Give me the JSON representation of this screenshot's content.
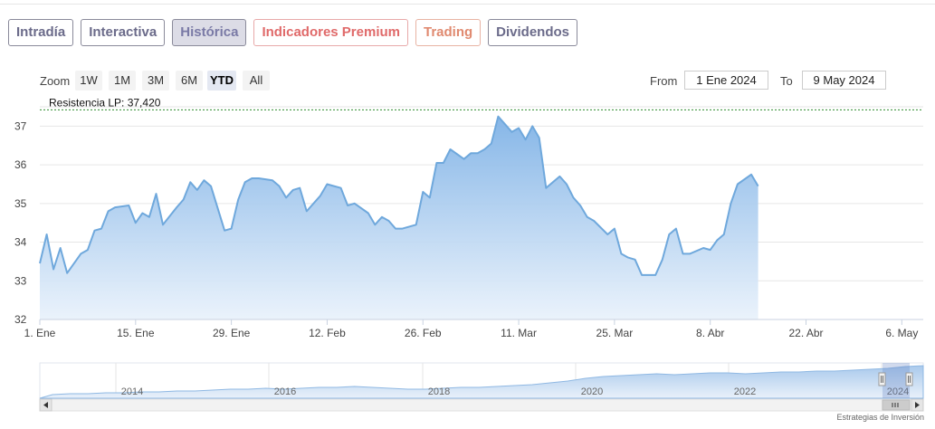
{
  "tabs": [
    {
      "label": "Intradía"
    },
    {
      "label": "Interactiva"
    },
    {
      "label": "Histórica"
    },
    {
      "label": "Indicadores Premium"
    },
    {
      "label": "Trading"
    },
    {
      "label": "Dividendos"
    }
  ],
  "active_tab": "Histórica",
  "zoom": {
    "label": "Zoom",
    "buttons": [
      "1W",
      "1M",
      "3M",
      "6M",
      "YTD",
      "All"
    ],
    "selected": "YTD"
  },
  "range": {
    "from_label": "From",
    "from_value": "1 Ene 2024",
    "to_label": "To",
    "to_value": "9 May 2024"
  },
  "credit": "Estrategias de Inversión",
  "colors": {
    "line": "#6fa8dc",
    "area_top": "#7fb2e6",
    "area_bottom": "#e8f1fb",
    "resistance": "#2e8b2e"
  },
  "chart_data": {
    "type": "area",
    "x_start": "2024-01-01",
    "x_end": "2024-05-09",
    "ylim": [
      32,
      37.5
    ],
    "yticks": [
      "32",
      "33",
      "34",
      "35",
      "36",
      "37"
    ],
    "xticks": [
      {
        "date": "2024-01-01",
        "label": "1. Ene"
      },
      {
        "date": "2024-01-15",
        "label": "15. Ene"
      },
      {
        "date": "2024-01-29",
        "label": "29. Ene"
      },
      {
        "date": "2024-02-12",
        "label": "12. Feb"
      },
      {
        "date": "2024-02-26",
        "label": "26. Feb"
      },
      {
        "date": "2024-03-11",
        "label": "11. Mar"
      },
      {
        "date": "2024-03-25",
        "label": "25. Mar"
      },
      {
        "date": "2024-04-08",
        "label": "8. Abr"
      },
      {
        "date": "2024-04-22",
        "label": "22. Abr"
      },
      {
        "date": "2024-05-06",
        "label": "6. May"
      }
    ],
    "resistance": {
      "label": "Resistencia LP: 37,420",
      "value": 37.42
    },
    "series": [
      {
        "points": [
          [
            "2024-01-01",
            33.45
          ],
          [
            "2024-01-02",
            34.2
          ],
          [
            "2024-01-03",
            33.3
          ],
          [
            "2024-01-04",
            33.85
          ],
          [
            "2024-01-05",
            33.2
          ],
          [
            "2024-01-07",
            33.7
          ],
          [
            "2024-01-08",
            33.8
          ],
          [
            "2024-01-09",
            34.3
          ],
          [
            "2024-01-10",
            34.35
          ],
          [
            "2024-01-11",
            34.8
          ],
          [
            "2024-01-12",
            34.9
          ],
          [
            "2024-01-14",
            34.95
          ],
          [
            "2024-01-15",
            34.5
          ],
          [
            "2024-01-16",
            34.75
          ],
          [
            "2024-01-17",
            34.65
          ],
          [
            "2024-01-18",
            35.25
          ],
          [
            "2024-01-19",
            34.45
          ],
          [
            "2024-01-21",
            34.9
          ],
          [
            "2024-01-22",
            35.1
          ],
          [
            "2024-01-23",
            35.55
          ],
          [
            "2024-01-24",
            35.35
          ],
          [
            "2024-01-25",
            35.6
          ],
          [
            "2024-01-26",
            35.45
          ],
          [
            "2024-01-28",
            34.3
          ],
          [
            "2024-01-29",
            34.35
          ],
          [
            "2024-01-30",
            35.1
          ],
          [
            "2024-01-31",
            35.55
          ],
          [
            "2024-02-01",
            35.65
          ],
          [
            "2024-02-02",
            35.65
          ],
          [
            "2024-02-04",
            35.6
          ],
          [
            "2024-02-05",
            35.45
          ],
          [
            "2024-02-06",
            35.15
          ],
          [
            "2024-02-07",
            35.35
          ],
          [
            "2024-02-08",
            35.4
          ],
          [
            "2024-02-09",
            34.8
          ],
          [
            "2024-02-11",
            35.2
          ],
          [
            "2024-02-12",
            35.5
          ],
          [
            "2024-02-13",
            35.45
          ],
          [
            "2024-02-14",
            35.4
          ],
          [
            "2024-02-15",
            34.95
          ],
          [
            "2024-02-16",
            35.0
          ],
          [
            "2024-02-18",
            34.75
          ],
          [
            "2024-02-19",
            34.45
          ],
          [
            "2024-02-20",
            34.65
          ],
          [
            "2024-02-21",
            34.55
          ],
          [
            "2024-02-22",
            34.35
          ],
          [
            "2024-02-23",
            34.35
          ],
          [
            "2024-02-25",
            34.45
          ],
          [
            "2024-02-26",
            35.3
          ],
          [
            "2024-02-27",
            35.15
          ],
          [
            "2024-02-28",
            36.05
          ],
          [
            "2024-02-29",
            36.05
          ],
          [
            "2024-03-01",
            36.4
          ],
          [
            "2024-03-03",
            36.15
          ],
          [
            "2024-03-04",
            36.3
          ],
          [
            "2024-03-05",
            36.3
          ],
          [
            "2024-03-06",
            36.4
          ],
          [
            "2024-03-07",
            36.55
          ],
          [
            "2024-03-08",
            37.25
          ],
          [
            "2024-03-10",
            36.85
          ],
          [
            "2024-03-11",
            36.95
          ],
          [
            "2024-03-12",
            36.65
          ],
          [
            "2024-03-13",
            37.0
          ],
          [
            "2024-03-14",
            36.7
          ],
          [
            "2024-03-15",
            35.4
          ],
          [
            "2024-03-17",
            35.7
          ],
          [
            "2024-03-18",
            35.5
          ],
          [
            "2024-03-19",
            35.15
          ],
          [
            "2024-03-20",
            34.95
          ],
          [
            "2024-03-21",
            34.65
          ],
          [
            "2024-03-22",
            34.55
          ],
          [
            "2024-03-24",
            34.2
          ],
          [
            "2024-03-25",
            34.35
          ],
          [
            "2024-03-26",
            33.7
          ],
          [
            "2024-03-27",
            33.6
          ],
          [
            "2024-03-28",
            33.55
          ],
          [
            "2024-03-29",
            33.15
          ],
          [
            "2024-03-31",
            33.15
          ],
          [
            "2024-04-01",
            33.55
          ],
          [
            "2024-04-02",
            34.2
          ],
          [
            "2024-04-03",
            34.35
          ],
          [
            "2024-04-04",
            33.7
          ],
          [
            "2024-04-05",
            33.7
          ],
          [
            "2024-04-07",
            33.85
          ],
          [
            "2024-04-08",
            33.8
          ],
          [
            "2024-04-09",
            34.05
          ],
          [
            "2024-04-10",
            34.2
          ],
          [
            "2024-04-11",
            35.0
          ],
          [
            "2024-04-12",
            35.5
          ],
          [
            "2024-04-14",
            35.75
          ],
          [
            "2024-04-15",
            35.45
          ]
        ]
      }
    ],
    "navigator": {
      "labels": [
        "2014",
        "2016",
        "2018",
        "2020",
        "2022",
        "2024"
      ]
    }
  }
}
